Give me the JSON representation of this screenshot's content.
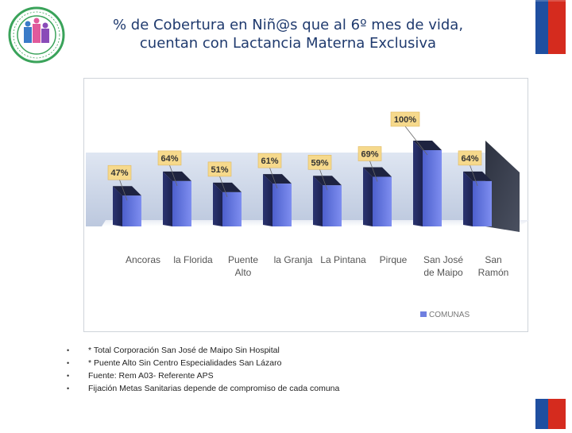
{
  "title": {
    "line1": "% de Cobertura en Niñ@s que al 6º mes de vida,",
    "line2": "cuentan con Lactancia Materna Exclusiva"
  },
  "colors": {
    "title": "#1f3a6e",
    "bar_front": "#5b6fd6",
    "bar_side": "#2a3370",
    "bar_top": "#1e2340",
    "label_bg": "#f6d98c",
    "wall": "#c9d3e6",
    "flag_blue": "#1f4fa0",
    "flag_red": "#d52b1e"
  },
  "logo": {
    "icon": "seal-logo"
  },
  "chart_data": {
    "type": "bar",
    "categories": [
      "Ancoras",
      "la Florida",
      "Puente Alto",
      "la Granja",
      "La Pintana",
      "Pirque",
      "San José de Maipo",
      "San Ramón"
    ],
    "category_lines": [
      [
        "Ancoras"
      ],
      [
        "la Florida"
      ],
      [
        "Puente",
        "Alto"
      ],
      [
        "la Granja"
      ],
      [
        "La Pintana"
      ],
      [
        "Pirque"
      ],
      [
        "San José",
        "de Maipo"
      ],
      [
        "San",
        "Ramón"
      ]
    ],
    "series": [
      {
        "name": "COMUNAS",
        "values": [
          47,
          64,
          51,
          61,
          59,
          69,
          100,
          64
        ]
      }
    ],
    "data_labels": [
      "47%",
      "64%",
      "51%",
      "61%",
      "59%",
      "69%",
      "100%",
      "64%"
    ],
    "ylim": [
      0,
      100
    ],
    "legend": "bottom-right",
    "style": "3d"
  },
  "notes": [
    "* Total  Corporación San José de Maipo Sin Hospital",
    "* Puente Alto Sin Centro Especialidades San Lázaro",
    "Fuente:  Rem A03- Referente APS",
    "Fijación Metas Sanitarias depende  de compromiso de cada comuna"
  ],
  "bullet_symbol": "•"
}
